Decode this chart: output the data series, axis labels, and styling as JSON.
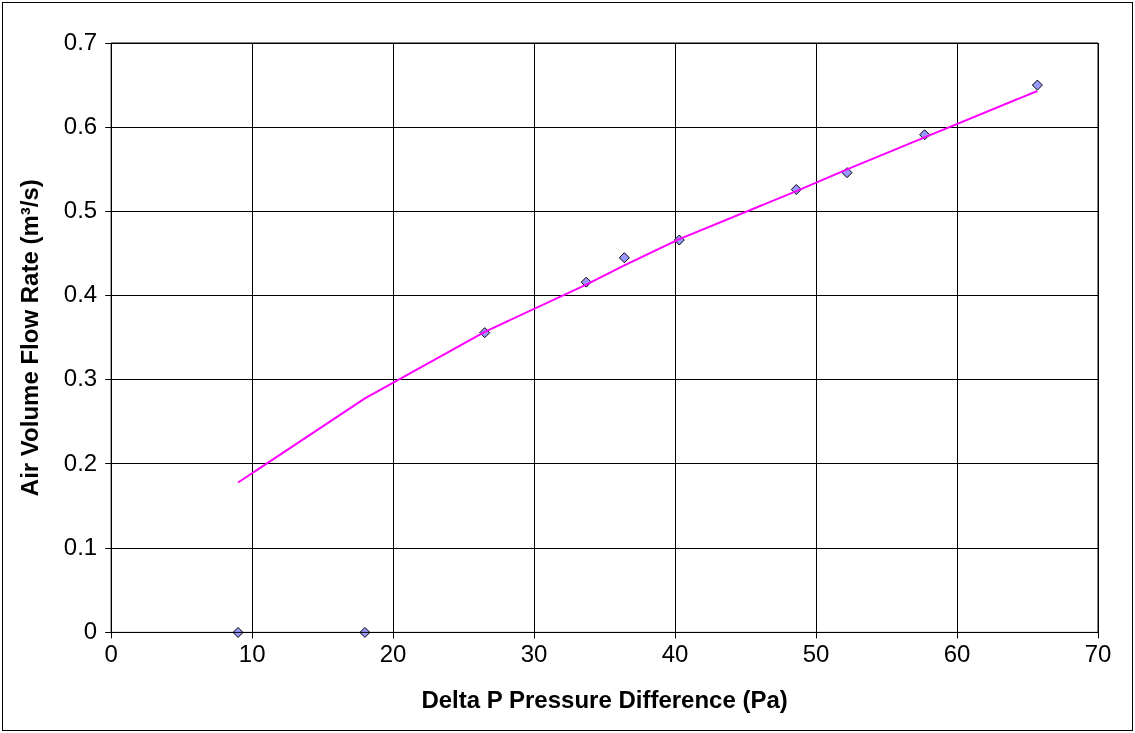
{
  "chart_data": {
    "type": "scatter",
    "xlabel": "Delta P Pressure Difference (Pa)",
    "ylabel": "Air Volume Flow Rate (m³/s)",
    "xlim": [
      0,
      70
    ],
    "xticks": [
      0,
      10,
      20,
      30,
      40,
      50,
      60,
      70
    ],
    "ylim": [
      0,
      0.7
    ],
    "yticks": [
      0,
      0.1,
      0.2,
      0.3,
      0.4,
      0.5,
      0.6,
      0.7
    ],
    "grid": true,
    "series": [
      {
        "type": "scatter",
        "marker": "diamond",
        "color": "#9999ff",
        "x": [
          9,
          18,
          26.5,
          33.7,
          36.4,
          40.3,
          48.6,
          52.2,
          57.7,
          65.7
        ],
        "values": [
          0,
          0,
          0.356,
          0.416,
          0.445,
          0.466,
          0.526,
          0.546,
          0.591,
          0.65
        ]
      },
      {
        "type": "line",
        "marker": "none",
        "color": "#ff00ff",
        "x": [
          9,
          18,
          26.5,
          33.7,
          36.4,
          40.3,
          48.6,
          52.2,
          57.7,
          65.7
        ],
        "values": [
          0.178,
          0.278,
          0.357,
          0.413,
          0.436,
          0.467,
          0.524,
          0.55,
          0.588,
          0.643
        ]
      }
    ]
  }
}
